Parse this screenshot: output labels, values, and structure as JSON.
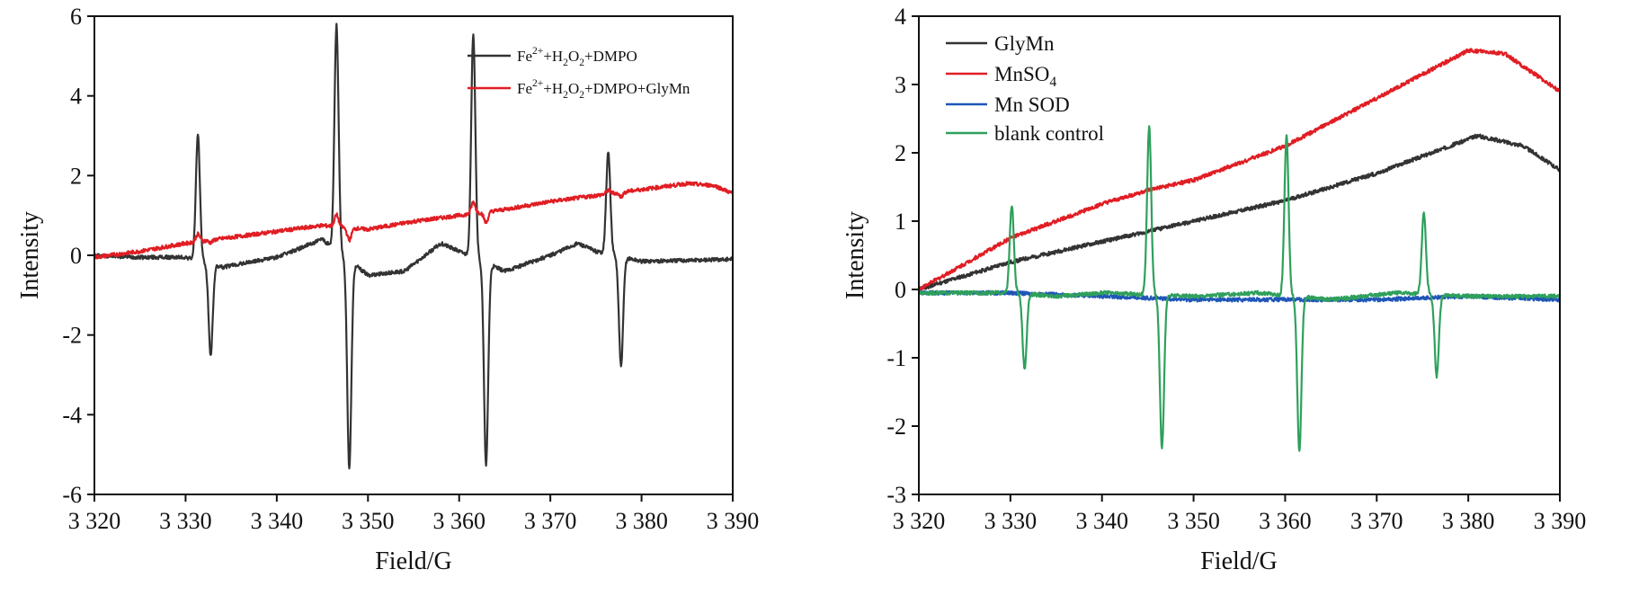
{
  "chart_data": [
    {
      "type": "line",
      "xlabel": "Field/G",
      "ylabel": "Intensity",
      "xlim": [
        3320,
        3390
      ],
      "ylim": [
        -6,
        6
      ],
      "xticks": [
        "3 320",
        "3 330",
        "3 340",
        "3 350",
        "3 360",
        "3 370",
        "3 380",
        "3 390"
      ],
      "yticks": [
        "-6",
        "-4",
        "-2",
        "0",
        "2",
        "4",
        "6"
      ],
      "grid": false,
      "legend_position": "top-right",
      "series": [
        {
          "name": "Fe2++H2O2+DMPO",
          "color": "#333333",
          "baseline": [
            [
              3320,
              0.0
            ],
            [
              3325,
              -0.05
            ],
            [
              3330,
              -0.05
            ],
            [
              3334,
              -0.3
            ],
            [
              3340,
              -0.05
            ],
            [
              3345,
              0.4
            ],
            [
              3350,
              -0.5
            ],
            [
              3354,
              -0.4
            ],
            [
              3358,
              0.3
            ],
            [
              3365,
              -0.4
            ],
            [
              3370,
              0.0
            ],
            [
              3373,
              0.3
            ],
            [
              3375,
              0.1
            ],
            [
              3380,
              -0.15
            ],
            [
              3390,
              -0.1
            ]
          ],
          "peaks": [
            {
              "center": 3332,
              "max": 2.95,
              "min": -2.45
            },
            {
              "center": 3347.2,
              "max": 5.65,
              "min": -5.2
            },
            {
              "center": 3362.2,
              "max": 5.5,
              "min": -5.2
            },
            {
              "center": 3377,
              "max": 2.55,
              "min": -2.75
            }
          ]
        },
        {
          "name": "Fe2++H2O2+DMPO+GlyMn",
          "color": "#e01e24",
          "baseline": [
            [
              3320,
              -0.05
            ],
            [
              3325,
              0.1
            ],
            [
              3330,
              0.3
            ],
            [
              3335,
              0.45
            ],
            [
              3340,
              0.6
            ],
            [
              3345,
              0.75
            ],
            [
              3350,
              0.65
            ],
            [
              3355,
              0.85
            ],
            [
              3360,
              1.0
            ],
            [
              3365,
              1.15
            ],
            [
              3370,
              1.35
            ],
            [
              3375,
              1.5
            ],
            [
              3380,
              1.65
            ],
            [
              3385,
              1.8
            ],
            [
              3388,
              1.75
            ],
            [
              3390,
              1.55
            ]
          ],
          "peaks": [
            {
              "center": 3332,
              "max": 0.55,
              "min": 0.3
            },
            {
              "center": 3347.2,
              "max": 1.0,
              "min": 0.4
            },
            {
              "center": 3362.2,
              "max": 1.35,
              "min": 0.8
            },
            {
              "center": 3377,
              "max": 1.65,
              "min": 1.45
            }
          ]
        }
      ]
    },
    {
      "type": "line",
      "xlabel": "Field/G",
      "ylabel": "Intensity",
      "xlim": [
        3320,
        3390
      ],
      "ylim": [
        -3,
        4
      ],
      "xticks": [
        "3 320",
        "3 330",
        "3 340",
        "3 350",
        "3 360",
        "3 370",
        "3 380",
        "3 390"
      ],
      "yticks": [
        "-3",
        "-2",
        "-1",
        "0",
        "1",
        "2",
        "3",
        "4"
      ],
      "grid": false,
      "legend_position": "top-left",
      "series": [
        {
          "name": "GlyMn",
          "color": "#333333",
          "baseline": [
            [
              3320,
              0.0
            ],
            [
              3330,
              0.4
            ],
            [
              3340,
              0.7
            ],
            [
              3350,
              1.0
            ],
            [
              3360,
              1.3
            ],
            [
              3370,
              1.7
            ],
            [
              3375,
              1.95
            ],
            [
              3381,
              2.25
            ],
            [
              3386,
              2.1
            ],
            [
              3390,
              1.75
            ]
          ],
          "peaks": []
        },
        {
          "name": "MnSO4",
          "color": "#e01e24",
          "baseline": [
            [
              3320,
              0.0
            ],
            [
              3330,
              0.75
            ],
            [
              3340,
              1.25
            ],
            [
              3345,
              1.45
            ],
            [
              3350,
              1.6
            ],
            [
              3360,
              2.1
            ],
            [
              3370,
              2.8
            ],
            [
              3380,
              3.5
            ],
            [
              3384,
              3.45
            ],
            [
              3390,
              2.9
            ]
          ],
          "peaks": []
        },
        {
          "name": "Mn SOD",
          "color": "#1f56b8",
          "baseline": [
            [
              3320,
              -0.05
            ],
            [
              3330,
              -0.05
            ],
            [
              3340,
              -0.1
            ],
            [
              3350,
              -0.15
            ],
            [
              3360,
              -0.15
            ],
            [
              3370,
              -0.15
            ],
            [
              3380,
              -0.1
            ],
            [
              3390,
              -0.15
            ]
          ],
          "peaks": []
        },
        {
          "name": "blank control",
          "color": "#2fa05c",
          "baseline": [
            [
              3320,
              -0.05
            ],
            [
              3327,
              -0.05
            ],
            [
              3330,
              -0.05
            ],
            [
              3335,
              -0.1
            ],
            [
              3340,
              -0.05
            ],
            [
              3350,
              -0.1
            ],
            [
              3357,
              -0.05
            ],
            [
              3365,
              -0.15
            ],
            [
              3372,
              -0.05
            ],
            [
              3380,
              -0.1
            ],
            [
              3390,
              -0.1
            ]
          ],
          "peaks": [
            {
              "center": 3330.8,
              "max": 1.22,
              "min": -1.15
            },
            {
              "center": 3345.8,
              "max": 2.38,
              "min": -2.3
            },
            {
              "center": 3360.8,
              "max": 2.25,
              "min": -2.35
            },
            {
              "center": 3375.8,
              "max": 1.12,
              "min": -1.27
            }
          ]
        }
      ]
    }
  ],
  "legend_left": [
    {
      "base": "Fe",
      "sup": "2+",
      "p1": "+H",
      "s1": "2",
      "p2": "O",
      "s2": "2",
      "tail": "+DMPO"
    },
    {
      "base": "Fe",
      "sup": "2+",
      "p1": "+H",
      "s1": "2",
      "p2": "O",
      "s2": "2",
      "tail": "+DMPO+GlyMn"
    }
  ],
  "legend_right": {
    "glymn": "GlyMn",
    "mnso4_base": "MnSO",
    "mnso4_sub": "4",
    "mnsod": "Mn SOD",
    "blank": "blank control"
  }
}
